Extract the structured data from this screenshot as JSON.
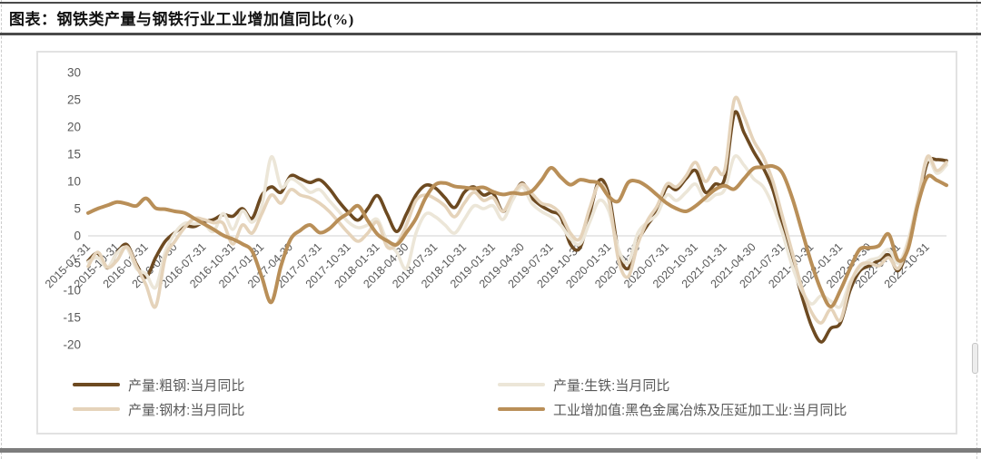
{
  "header": {
    "title": "图表：钢铁类产量与钢铁行业工业增加值同比(%)"
  },
  "colors": {
    "crude_steel": "#6d4a21",
    "pig_iron": "#ece6d8",
    "steel_products": "#e5d3ba",
    "industrial_added_value": "#b98f58",
    "axis_text": "#595959",
    "zero_line": "#d9d9d9",
    "rule_dark": "#4a4a4a",
    "rule_bottom": "#7d7d7d"
  },
  "chart_data": {
    "type": "line",
    "title": "图表：钢铁类产量与钢铁行业工业增加值同比(%)",
    "ylabel": "",
    "xlabel": "",
    "ylim": [
      -20,
      30
    ],
    "ytick_step": 5,
    "grid": "zero-line-only",
    "legend_position": "bottom-two-columns",
    "x_tick_labels": [
      "2015-07-31",
      "2015-10-31",
      "2016-01-31",
      "2016-04-30",
      "2016-07-31",
      "2016-10-31",
      "2017-01-31",
      "2017-04-30",
      "2017-07-31",
      "2017-10-31",
      "2018-01-31",
      "2018-04-30",
      "2018-07-31",
      "2018-10-31",
      "2019-01-31",
      "2019-04-30",
      "2019-07-31",
      "2019-10-31",
      "2020-01-31",
      "2020-04-30",
      "2020-07-31",
      "2020-10-31",
      "2021-01-31",
      "2021-04-30",
      "2021-07-31",
      "2021-10-31",
      "2022-01-31",
      "2022-04-30",
      "2022-07-31",
      "2022-10-31"
    ],
    "x": [
      "2015-07",
      "2015-08",
      "2015-09",
      "2015-10",
      "2015-11",
      "2015-12",
      "2016-01",
      "2016-02",
      "2016-03",
      "2016-04",
      "2016-05",
      "2016-06",
      "2016-07",
      "2016-08",
      "2016-09",
      "2016-10",
      "2016-11",
      "2016-12",
      "2017-01",
      "2017-02",
      "2017-03",
      "2017-04",
      "2017-05",
      "2017-06",
      "2017-07",
      "2017-08",
      "2017-09",
      "2017-10",
      "2017-11",
      "2017-12",
      "2018-01",
      "2018-02",
      "2018-03",
      "2018-04",
      "2018-05",
      "2018-06",
      "2018-07",
      "2018-08",
      "2018-09",
      "2018-10",
      "2018-11",
      "2018-12",
      "2019-01",
      "2019-02",
      "2019-03",
      "2019-04",
      "2019-05",
      "2019-06",
      "2019-07",
      "2019-08",
      "2019-09",
      "2019-10",
      "2019-11",
      "2019-12",
      "2020-01",
      "2020-02",
      "2020-03",
      "2020-04",
      "2020-05",
      "2020-06",
      "2020-07",
      "2020-08",
      "2020-09",
      "2020-10",
      "2020-11",
      "2020-12",
      "2021-01",
      "2021-02",
      "2021-03",
      "2021-04",
      "2021-05",
      "2021-06",
      "2021-07",
      "2021-08",
      "2021-09",
      "2021-10",
      "2021-11",
      "2021-12",
      "2022-01",
      "2022-02",
      "2022-03",
      "2022-04",
      "2022-05",
      "2022-06",
      "2022-07",
      "2022-08",
      "2022-09",
      "2022-10",
      "2022-11",
      "2022-12"
    ],
    "series": [
      {
        "name": "产量:粗钢:当月同比",
        "color": "#6d4a21",
        "width": 3.6,
        "values": [
          -4.6,
          -3.2,
          -5.9,
          -3.1,
          -1.6,
          -5.2,
          -7.6,
          -4.0,
          -1.0,
          0.6,
          1.8,
          1.7,
          2.6,
          3.0,
          3.9,
          3.6,
          5.0,
          3.2,
          7.4,
          9.0,
          8.0,
          11.0,
          10.5,
          9.8,
          10.3,
          8.7,
          6.3,
          4.3,
          2.9,
          5.0,
          7.4,
          4.0,
          0.8,
          4.0,
          7.5,
          9.3,
          8.8,
          7.0,
          5.2,
          8.0,
          9.0,
          7.5,
          7.8,
          4.5,
          7.0,
          9.7,
          7.0,
          5.5,
          4.5,
          3.5,
          -1.5,
          -2.2,
          4.0,
          10.2,
          7.5,
          -3.0,
          -6.0,
          -1.0,
          2.0,
          4.5,
          9.0,
          8.5,
          10.5,
          12.0,
          8.0,
          9.5,
          10.5,
          22.5,
          19.0,
          15.5,
          12.5,
          8.5,
          2.0,
          -4.5,
          -11.0,
          -16.5,
          -19.5,
          -17.0,
          -16.0,
          -10.0,
          -6.5,
          -5.5,
          -4.5,
          -3.5,
          -6.4,
          -2.0,
          5.5,
          13.4,
          14.0,
          13.8
        ]
      },
      {
        "name": "产量:生铁:当月同比",
        "color": "#ece6d8",
        "width": 3.6,
        "values": [
          -4.8,
          -4.0,
          -5.8,
          -3.2,
          -2.2,
          -6.0,
          -7.0,
          -9.5,
          -3.0,
          0.5,
          2.3,
          2.2,
          2.2,
          0.8,
          4.1,
          1.2,
          4.6,
          2.5,
          5.5,
          14.5,
          9.0,
          10.5,
          9.5,
          8.0,
          8.5,
          6.5,
          4.5,
          2.5,
          1.5,
          2.0,
          3.0,
          -1.0,
          -3.0,
          -6.0,
          0.5,
          4.0,
          3.5,
          2.0,
          0.5,
          3.0,
          5.5,
          5.0,
          5.5,
          3.0,
          6.5,
          9.0,
          6.0,
          4.5,
          3.5,
          2.0,
          -0.5,
          -1.5,
          2.5,
          6.5,
          4.5,
          -2.5,
          -5.0,
          0.5,
          2.5,
          4.0,
          7.5,
          6.5,
          8.0,
          9.5,
          6.5,
          7.5,
          8.5,
          14.5,
          13.0,
          10.5,
          9.0,
          5.5,
          0.5,
          -5.5,
          -10.0,
          -12.5,
          -11.0,
          -12.0,
          -13.0,
          -8.5,
          -6.0,
          -4.5,
          -4.0,
          -2.5,
          -5.0,
          -1.0,
          6.5,
          14.0,
          11.5,
          13.0
        ]
      },
      {
        "name": "产量:钢材:当月同比",
        "color": "#e5d3ba",
        "width": 3.6,
        "values": [
          -5.6,
          -3.0,
          -5.8,
          -4.5,
          -2.0,
          -5.5,
          -9.0,
          -13.0,
          -4.0,
          -1.0,
          1.5,
          3.2,
          3.0,
          2.4,
          2.3,
          -1.5,
          2.0,
          0.5,
          4.0,
          7.5,
          6.0,
          8.5,
          7.5,
          7.0,
          6.0,
          4.5,
          2.5,
          0.5,
          -1.0,
          0.5,
          2.5,
          -2.0,
          -1.5,
          2.0,
          6.5,
          7.5,
          6.8,
          5.5,
          3.5,
          6.0,
          8.0,
          6.5,
          7.0,
          4.5,
          7.5,
          9.5,
          7.8,
          6.0,
          5.5,
          4.0,
          0.5,
          -0.5,
          5.0,
          9.5,
          6.5,
          -4.5,
          -7.5,
          -1.5,
          2.8,
          5.5,
          9.5,
          9.0,
          11.0,
          13.5,
          10.0,
          12.5,
          12.0,
          25.0,
          22.0,
          17.5,
          14.5,
          10.0,
          3.5,
          -3.0,
          -9.5,
          -14.0,
          -16.0,
          -13.5,
          -15.5,
          -9.0,
          -5.5,
          -5.0,
          -5.5,
          -4.0,
          -6.0,
          -1.5,
          6.0,
          14.5,
          12.0,
          13.5
        ]
      },
      {
        "name": "工业增加值:黑色金属冶炼及压延加工业:当月同比",
        "color": "#b98f58",
        "width": 4.0,
        "values": [
          4.2,
          5.0,
          5.6,
          6.2,
          5.9,
          5.5,
          6.9,
          5.1,
          4.9,
          4.5,
          4.2,
          3.2,
          2.2,
          1.2,
          0.1,
          -0.6,
          -1.5,
          -2.8,
          -7.5,
          -12.2,
          -5.5,
          -0.6,
          1.0,
          2.0,
          0.6,
          1.3,
          3.0,
          4.2,
          5.5,
          2.8,
          0.3,
          -0.9,
          -1.6,
          0.6,
          3.2,
          7.0,
          9.4,
          9.7,
          9.1,
          8.9,
          8.7,
          8.9,
          8.1,
          7.6,
          7.9,
          7.7,
          8.2,
          10.2,
          12.5,
          10.8,
          9.4,
          10.3,
          10.0,
          9.6,
          7.2,
          6.4,
          9.8,
          10.0,
          9.0,
          7.5,
          6.0,
          5.0,
          4.5,
          5.5,
          7.0,
          8.5,
          9.2,
          8.6,
          10.5,
          12.4,
          12.6,
          12.8,
          11.5,
          7.0,
          1.0,
          -5.0,
          -10.0,
          -13.0,
          -10.0,
          -6.0,
          -2.5,
          -2.2,
          -1.8,
          0.3,
          -4.5,
          -2.5,
          5.5,
          10.8,
          10.2,
          9.3
        ]
      }
    ]
  }
}
